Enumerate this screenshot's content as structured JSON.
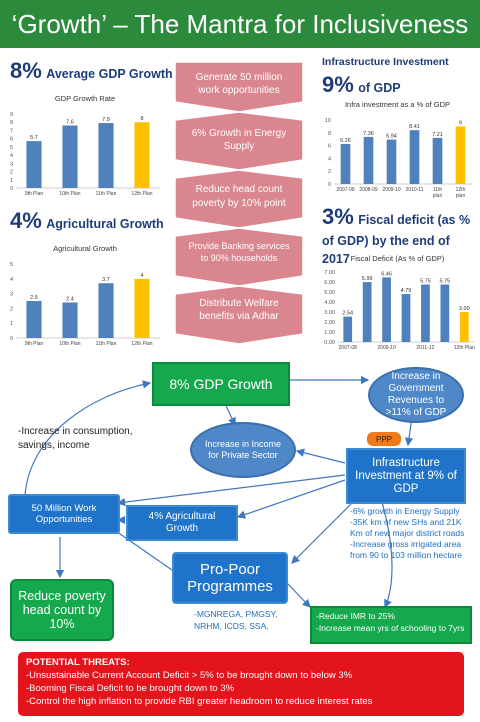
{
  "header": {
    "title": "‘Growth’ – The Mantra for Inclusiveness"
  },
  "gdp": {
    "value": "8%",
    "label": "Average GDP Growth",
    "chart_title": "GDP Growth Rate"
  },
  "agri": {
    "value": "4%",
    "label": "Agricultural Growth",
    "chart_title": "Agricultural  Growth"
  },
  "infra": {
    "heading": "Infrastructure Investment",
    "value": "9%",
    "label": "of GDP",
    "chart_title": "Infra investment as a % of GDP"
  },
  "fiscal": {
    "value": "3%",
    "label_line1": "Fiscal deficit (as %",
    "label_line2": "of GDP) by the end of 2017",
    "chart_title": "Fiscal Deficit (As % of GDP)"
  },
  "arrows": [
    {
      "line1": "Generate 50 million",
      "line2": "work opportunities"
    },
    {
      "line1": "6% Growth in Energy",
      "line2": "Supply"
    },
    {
      "line1": "Reduce head count",
      "line2": "poverty by 10% point"
    },
    {
      "line1": "Provide Banking services",
      "line2": "to 90% households"
    },
    {
      "line1": "Distribute Welfare",
      "line2": "benefits via Adhar"
    }
  ],
  "diagram": {
    "gdp_growth": "8% GDP Growth",
    "govt_revenue": "Increase in Government Revenues to >11% of GDP",
    "consumption": "-Increase in consumption, savings, income",
    "private_income": "Increase in Income for Private Sector",
    "ppp": "PPP",
    "infra_investment": "Infrastructure Investment at 9% of GDP",
    "work_opp": "50 Million Work Opportunities",
    "agri_growth": "4% Agricultural Growth",
    "pro_poor": "Pro-Poor Programmes",
    "reduce_poverty": "Reduce poverty head count by 10%",
    "pro_poor_list": "-MGNREGA, PMGSY, NRHM, ICDS, SSA,",
    "infra_notes": [
      "-6% growth in Energy Supply",
      "-35K km of new SHs and 21K Km of new major district roads",
      "-Increase gross irrigated area from 90 to 103 million hectare"
    ],
    "imr_note": "-Reduce IMR to 25%",
    "school_note": "-Increase mean yrs of schooling to 7yrs"
  },
  "threats": {
    "title": "POTENTIAL THREATS:",
    "items": [
      "-Unsustainable Current Account Deficit > 5% to be brought down to below 3%",
      "-Booming Fiscal Deficit to be brought down to 3%",
      "-Control the high inflation to provide RBI greater headroom to reduce interest rates"
    ]
  },
  "colors": {
    "header_green": "#2c8a3c",
    "bar_blue": "#4f81bd",
    "bar_highlight": "#ffc000",
    "arrow_pink": "#d9868e",
    "box_blue": "#1f73c9",
    "box_green": "#15a84c",
    "threat_red": "#e3141b"
  },
  "chart_data": [
    {
      "type": "bar",
      "title": "GDP Growth Rate",
      "categories": [
        "9th Plan",
        "10th Plan",
        "11th Plan",
        "12th Plan"
      ],
      "values": [
        5.7,
        7.6,
        7.9,
        8
      ],
      "value_labels": [
        "5.7",
        "7.6",
        "7.9",
        "8"
      ],
      "ylim": [
        0,
        9
      ],
      "yticks": [
        0,
        1,
        2,
        3,
        4,
        5,
        6,
        7,
        8,
        9
      ],
      "highlight_last": true,
      "grid": false
    },
    {
      "type": "bar",
      "title": "Agricultural  Growth",
      "categories": [
        "9th Plan",
        "10th Plan",
        "11th Plan",
        "12th Plan"
      ],
      "values": [
        2.5,
        2.4,
        3.7,
        4
      ],
      "value_labels": [
        "2.5",
        "2.4",
        "3.7",
        "4"
      ],
      "ylim": [
        0,
        5
      ],
      "yticks": [
        0,
        1,
        2,
        3,
        4,
        5
      ],
      "highlight_last": true,
      "grid": false
    },
    {
      "type": "bar",
      "title": "Infra investment as a % of GDP",
      "categories": [
        "2007-08",
        "2008-09",
        "2009-10",
        "2010-11",
        "11th plan",
        "12th plan"
      ],
      "values": [
        6.26,
        7.36,
        6.94,
        8.41,
        7.21,
        9
      ],
      "value_labels": [
        "6.26",
        "7.36",
        "6.94",
        "8.41",
        "7.21",
        "9"
      ],
      "ylim": [
        0,
        10
      ],
      "yticks": [
        0,
        2,
        4,
        6,
        8,
        10
      ],
      "highlight_last": true,
      "grid": false
    },
    {
      "type": "bar",
      "title": "Fiscal Deficit (As % of GDP)",
      "categories": [
        "2007-08",
        "",
        "2009-10",
        "",
        "2011-12",
        "",
        "12th Plan"
      ],
      "values": [
        2.54,
        5.99,
        6.46,
        4.79,
        5.75,
        5.75,
        3.0
      ],
      "value_labels": [
        "2.54",
        "5.99",
        "6.46",
        "4.79",
        "5.75",
        "5.75",
        "3.00"
      ],
      "ylim": [
        0,
        7
      ],
      "yticks": [
        "0.00",
        "1.00",
        "2.00",
        "3.00",
        "4.00",
        "5.00",
        "6.00",
        "7.00"
      ],
      "highlight_last": true,
      "grid": false
    }
  ]
}
